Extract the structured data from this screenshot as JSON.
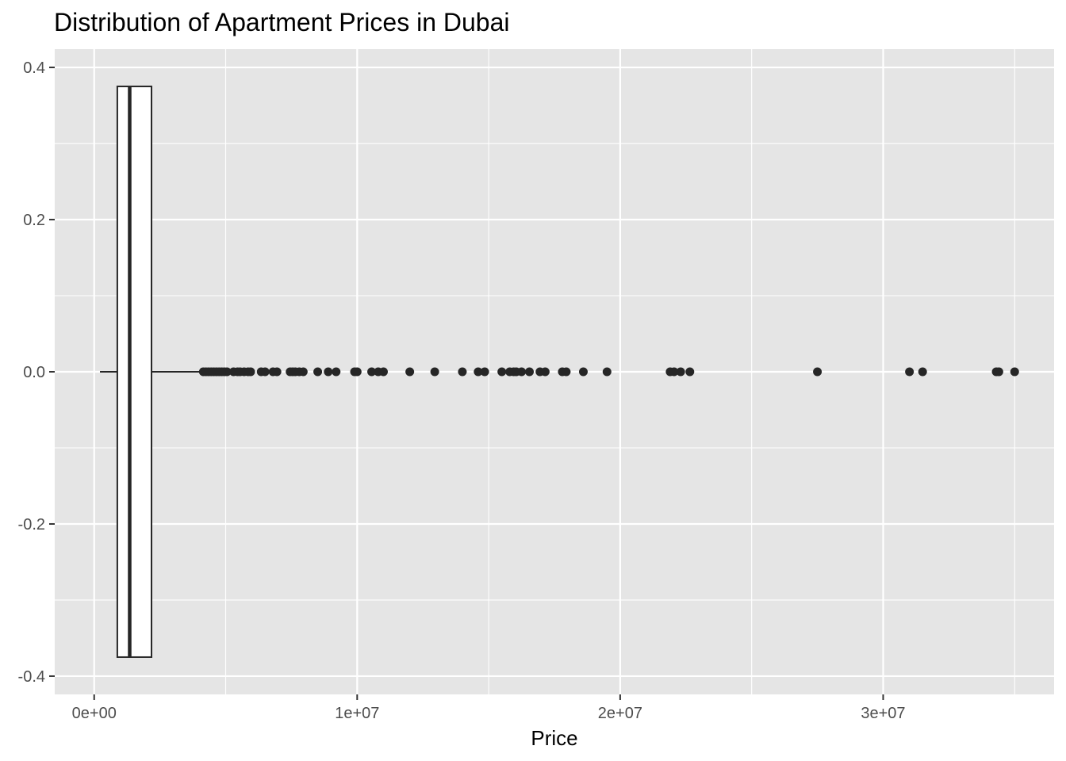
{
  "chart_data": {
    "type": "box",
    "title": "Distribution of Apartment Prices in Dubai",
    "xlabel": "Price",
    "ylabel": "",
    "xlim": [
      -1500000,
      36500000
    ],
    "ylim": [
      -0.4,
      0.4
    ],
    "x_ticks": [
      {
        "value": 0,
        "label": "0e+00"
      },
      {
        "value": 10000000,
        "label": "1e+07"
      },
      {
        "value": 20000000,
        "label": "2e+07"
      },
      {
        "value": 30000000,
        "label": "3e+07"
      }
    ],
    "x_minor_gridlines": [
      5000000,
      15000000,
      25000000,
      35000000
    ],
    "y_ticks": [
      {
        "value": 0.4,
        "label": "0.4"
      },
      {
        "value": 0.2,
        "label": "0.2"
      },
      {
        "value": 0.0,
        "label": "0.0"
      },
      {
        "value": -0.2,
        "label": "-0.2"
      },
      {
        "value": -0.4,
        "label": "-0.4"
      }
    ],
    "y_minor_gridlines": [
      0.3,
      0.1,
      -0.1,
      -0.3
    ],
    "grid": true,
    "box": {
      "whisker_low": 220000,
      "q1": 880000,
      "median": 1350000,
      "q3": 2180000,
      "whisker_high": 4150000,
      "y_center": 0.0,
      "half_width": 0.375
    },
    "outliers": [
      4150000,
      4250000,
      4350000,
      4450000,
      4550000,
      4650000,
      4750000,
      4850000,
      4950000,
      5050000,
      5300000,
      5450000,
      5550000,
      5700000,
      5850000,
      5950000,
      6350000,
      6500000,
      6800000,
      6950000,
      7450000,
      7550000,
      7650000,
      7800000,
      7950000,
      8500000,
      8900000,
      9200000,
      9900000,
      10000000,
      10550000,
      10800000,
      11000000,
      12000000,
      12950000,
      14000000,
      14600000,
      14850000,
      15500000,
      15800000,
      15950000,
      16050000,
      16250000,
      16550000,
      16950000,
      17150000,
      17800000,
      17950000,
      18600000,
      19500000,
      21900000,
      22050000,
      22300000,
      22650000,
      27500000,
      31000000,
      31500000,
      34300000,
      34400000,
      35000000
    ],
    "colors": {
      "panel_background": "#e5e5e5",
      "gridline": "#ffffff",
      "box_fill": "#ffffff",
      "box_stroke": "#262626",
      "point": "#262626"
    }
  }
}
